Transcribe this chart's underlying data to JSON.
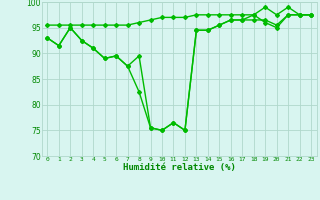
{
  "line1_x": [
    0,
    1,
    2,
    3,
    4,
    5,
    6,
    7,
    8,
    9,
    10,
    11,
    12,
    13,
    14,
    15,
    16,
    17,
    18,
    19,
    20,
    21,
    22,
    23
  ],
  "line1_y": [
    95.5,
    95.5,
    95.5,
    95.5,
    95.5,
    95.5,
    95.5,
    95.5,
    96.0,
    96.5,
    97.0,
    97.0,
    97.0,
    97.5,
    97.5,
    97.5,
    97.5,
    97.5,
    97.5,
    99.0,
    97.5,
    99.0,
    97.5,
    97.5
  ],
  "line2_x": [
    0,
    1,
    2,
    3,
    4,
    5,
    6,
    7,
    8,
    9,
    10,
    11,
    12,
    13,
    14,
    15,
    16,
    17,
    18,
    19,
    20,
    21,
    22,
    23
  ],
  "line2_y": [
    93.0,
    91.5,
    95.0,
    92.5,
    91.0,
    89.0,
    89.5,
    87.5,
    89.5,
    75.5,
    75.0,
    76.5,
    75.0,
    94.5,
    94.5,
    95.5,
    96.5,
    96.5,
    96.5,
    96.5,
    95.5,
    97.5,
    97.5,
    97.5
  ],
  "line3_x": [
    0,
    1,
    2,
    3,
    4,
    5,
    6,
    7,
    8,
    9,
    10,
    11,
    12,
    13,
    14,
    15,
    16,
    17,
    18,
    19,
    20,
    21,
    22,
    23
  ],
  "line3_y": [
    93.0,
    91.5,
    95.0,
    92.5,
    91.0,
    89.0,
    89.5,
    87.5,
    82.5,
    75.5,
    75.0,
    76.5,
    75.0,
    94.5,
    94.5,
    95.5,
    96.5,
    96.5,
    97.5,
    96.0,
    95.0,
    97.5,
    97.5,
    97.5
  ],
  "line_color": "#00bb00",
  "bg_color": "#d8f5f0",
  "grid_color": "#b0d8cc",
  "xlabel": "Humidité relative (%)",
  "xlabel_color": "#008800",
  "ylim": [
    70,
    100
  ],
  "xlim_min": -0.5,
  "xlim_max": 23.5,
  "yticks": [
    70,
    75,
    80,
    85,
    90,
    95,
    100
  ],
  "xticks": [
    0,
    1,
    2,
    3,
    4,
    5,
    6,
    7,
    8,
    9,
    10,
    11,
    12,
    13,
    14,
    15,
    16,
    17,
    18,
    19,
    20,
    21,
    22,
    23
  ],
  "tick_color": "#008800",
  "marker": "D",
  "marker_size": 2.0,
  "linewidth": 1.0
}
